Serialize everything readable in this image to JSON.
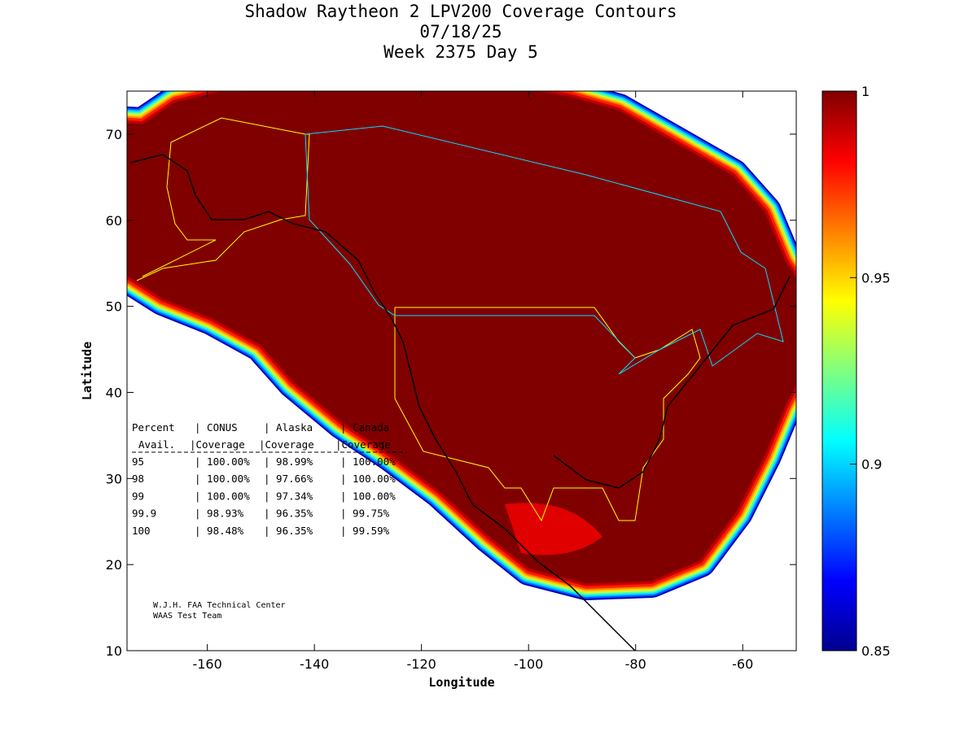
{
  "chart_data": {
    "type": "heatmap",
    "title": [
      "Shadow Raytheon 2 LPV200 Coverage Contours",
      "07/18/25",
      "Week 2375 Day 5"
    ],
    "xlabel": "Longitude",
    "ylabel": "Latitude",
    "xlim": [
      -175,
      -50
    ],
    "ylim": [
      10,
      75
    ],
    "xticks": [
      -160,
      -140,
      -120,
      -100,
      -80,
      -60
    ],
    "yticks": [
      10,
      20,
      30,
      40,
      50,
      60,
      70
    ],
    "colorbar": {
      "range": [
        0.85,
        1
      ],
      "ticks": [
        "0.85",
        "0.9",
        "0.95",
        "1"
      ],
      "tick_values": [
        0.85,
        0.9,
        0.95,
        1
      ],
      "colormap": "jet"
    },
    "table": {
      "header1": [
        "Percent",
        "CONUS",
        "Alaska",
        "Canada"
      ],
      "header2": [
        "Avail.",
        "Coverage",
        "Coverage",
        "Coverage"
      ],
      "rows": [
        [
          "95",
          "100.00%",
          "98.99%",
          "100.00%"
        ],
        [
          "98",
          "100.00%",
          "97.66%",
          "100.00%"
        ],
        [
          "99",
          "100.00%",
          "97.34%",
          "100.00%"
        ],
        [
          "99.9",
          "98.93%",
          "96.35%",
          "99.75%"
        ],
        [
          "100",
          "98.48%",
          "96.35%",
          "99.59%"
        ]
      ]
    },
    "credits": [
      "W.J.H. FAA Technical Center",
      "WAAS Test Team"
    ]
  }
}
